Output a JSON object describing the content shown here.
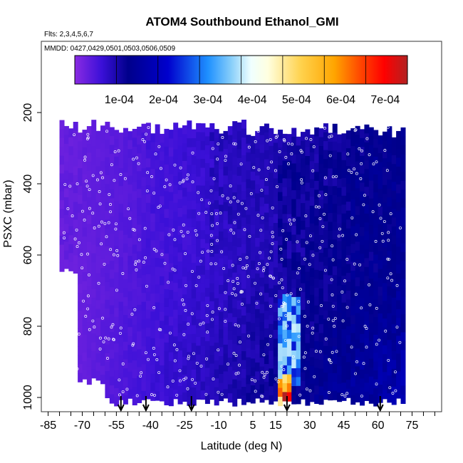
{
  "chart_data": {
    "type": "heatmap",
    "title": "ATOM4 Southbound Ethanol_GMI",
    "subtitle": "Flts: 2,3,4,5,6,7",
    "annotation": "MMDD: 0427,0429,0501,0503,0506,0509",
    "xlabel": "Latitude (deg N)",
    "ylabel": "PSXC (mbar)",
    "xlim": [
      -88,
      88
    ],
    "ylim": [
      1040,
      0
    ],
    "x_ticks": [
      "-85",
      "-70",
      "-55",
      "-40",
      "-25",
      "-10",
      "5",
      "15",
      "30",
      "45",
      "60",
      "75"
    ],
    "x_tick_values": [
      -85,
      -70,
      -55,
      -40,
      -25,
      -10,
      5,
      15,
      30,
      45,
      60,
      75
    ],
    "y_ticks": [
      "200",
      "400",
      "600",
      "800",
      "1000"
    ],
    "y_tick_values": [
      200,
      400,
      600,
      800,
      1000
    ],
    "colorbar": {
      "range": [
        0,
        0.00075
      ],
      "tick_labels": [
        "1e-04",
        "2e-04",
        "3e-04",
        "4e-04",
        "5e-04",
        "6e-04",
        "7e-04"
      ],
      "tick_values": [
        0.0001,
        0.0002,
        0.0003,
        0.0004,
        0.0005,
        0.0006,
        0.0007
      ],
      "colors": [
        "#8a2be2",
        "#3b10d8",
        "#00008b",
        "#0000cd",
        "#1e90ff",
        "#87cefa",
        "#f0ffff",
        "#ffffe0",
        "#ffd24d",
        "#ffa500",
        "#ff4500",
        "#ff0000",
        "#b22222"
      ]
    },
    "grid": false,
    "legend": "top",
    "flight_markers_lat": [
      -53,
      -42,
      -22,
      20,
      61
    ],
    "value_regions": [
      {
        "lat": [
          -80,
          -45
        ],
        "p": [
          220,
          600
        ],
        "value": 3e-05
      },
      {
        "lat": [
          -45,
          -15
        ],
        "p": [
          220,
          600
        ],
        "value": 5e-05
      },
      {
        "lat": [
          -15,
          15
        ],
        "p": [
          250,
          600
        ],
        "value": 8e-05
      },
      {
        "lat": [
          15,
          45
        ],
        "p": [
          300,
          700
        ],
        "value": 0.00011
      },
      {
        "lat": [
          45,
          72
        ],
        "p": [
          300,
          800
        ],
        "value": 0.00012
      },
      {
        "lat": [
          15,
          25
        ],
        "p": [
          700,
          950
        ],
        "value": 0.00032
      },
      {
        "lat": [
          16,
          22
        ],
        "p": [
          930,
          1000
        ],
        "value": 0.00065
      }
    ]
  }
}
